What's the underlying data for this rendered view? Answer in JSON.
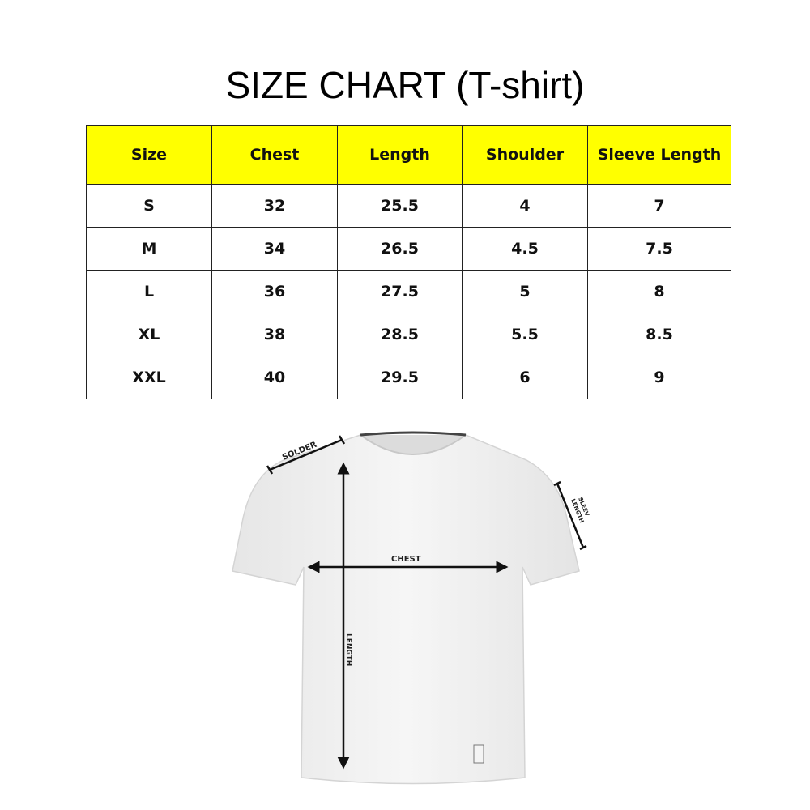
{
  "title": "SIZE CHART (T-shirt)",
  "table": {
    "headers": [
      "Size",
      "Chest",
      "Length",
      "Shoulder",
      "Sleeve Length"
    ],
    "rows": [
      [
        "S",
        "32",
        "25.5",
        "4",
        "7"
      ],
      [
        "M",
        "34",
        "26.5",
        "4.5",
        "7.5"
      ],
      [
        "L",
        "36",
        "27.5",
        "5",
        "8"
      ],
      [
        "XL",
        "38",
        "28.5",
        "5.5",
        "8.5"
      ],
      [
        "XXL",
        "40",
        "29.5",
        "6",
        "9"
      ]
    ],
    "header_color": "#ffff00"
  },
  "diagram": {
    "labels": {
      "shoulder": "SOLDER",
      "chest": "CHEST",
      "length": "LENGTH",
      "sleeve_line1": "SLEEV",
      "sleeve_line2": "LENGTH"
    }
  }
}
